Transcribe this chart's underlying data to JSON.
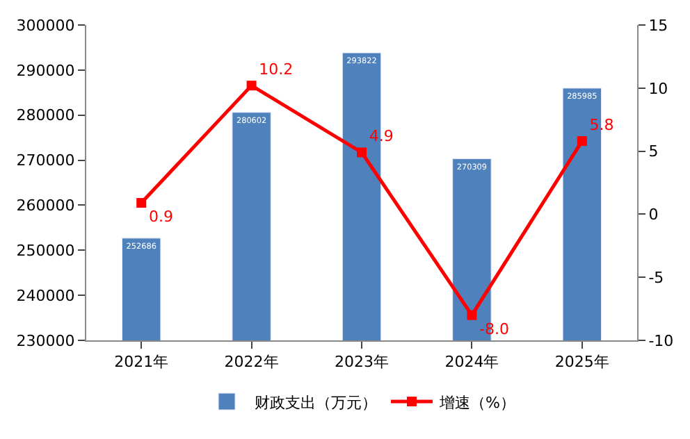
{
  "chart_data": {
    "type": "bar",
    "categories": [
      "2021年",
      "2022年",
      "2023年",
      "2024年",
      "2025年"
    ],
    "series": [
      {
        "name": "财政支出（万元）",
        "color": "#4f81bd",
        "values": [
          252686,
          280602,
          293822,
          270309,
          285985
        ],
        "value_labels": [
          "252686",
          "280602",
          "293822",
          "270309",
          "285985"
        ]
      },
      {
        "name": "增速（%）",
        "type": "line",
        "axis": "y2",
        "color": "#ff0000",
        "marker": "square",
        "values": [
          0.9,
          10.2,
          4.9,
          -8.0,
          5.8
        ],
        "value_labels": [
          "0.9",
          "10.2",
          "4.9",
          "-8.0",
          "5.8"
        ]
      }
    ],
    "ylim": [
      230000,
      300000
    ],
    "yticks": [
      230000,
      240000,
      250000,
      260000,
      270000,
      280000,
      290000,
      300000
    ],
    "y2lim": [
      -10,
      15
    ],
    "y2ticks": [
      -10,
      -5,
      0,
      5,
      10,
      15
    ],
    "legend": "bottom"
  }
}
